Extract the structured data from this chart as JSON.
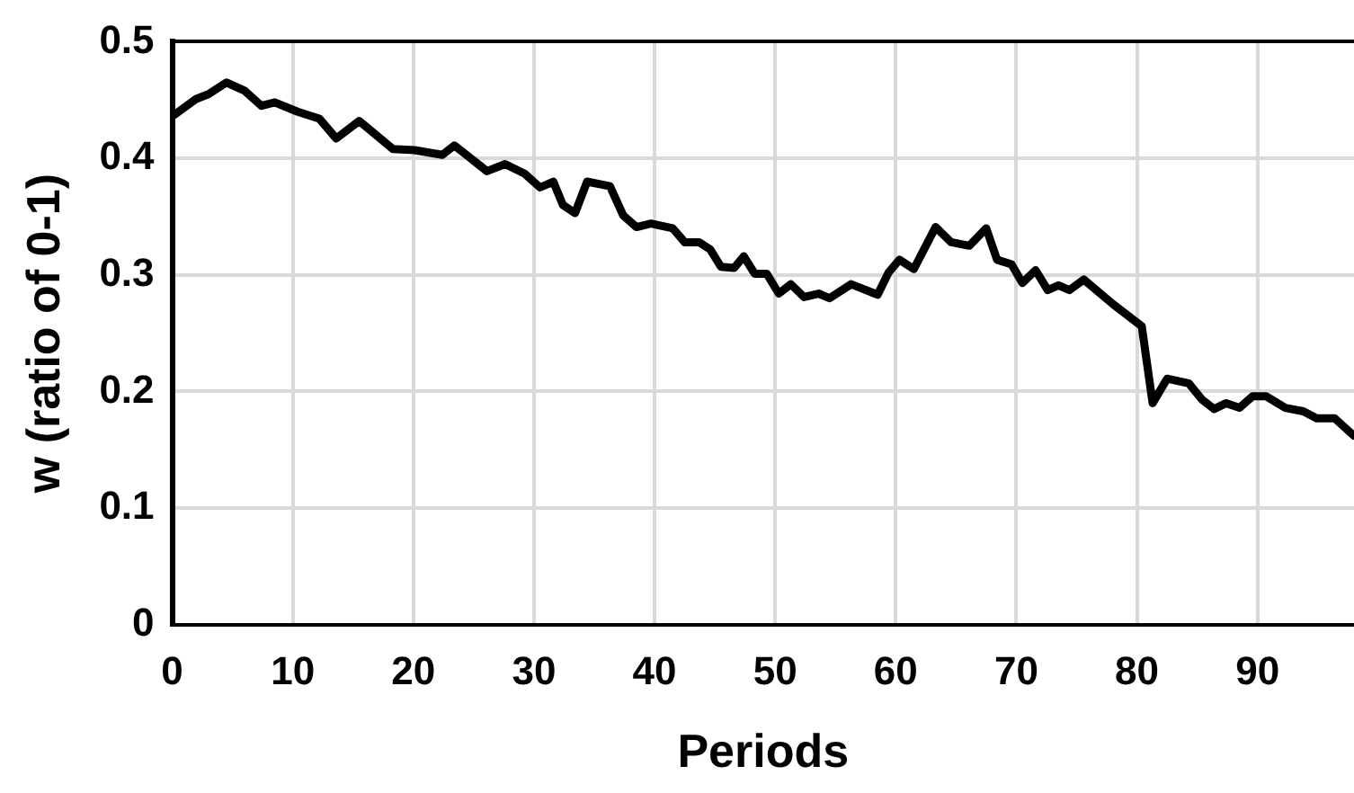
{
  "chart_data": {
    "type": "line",
    "xlabel": "Periods",
    "ylabel": "w (ratio of 0-1)",
    "x": [
      0,
      2,
      3,
      4.5,
      6,
      7.4,
      8.5,
      10.4,
      12.2,
      13.6,
      15.5,
      18.3,
      20.1,
      22.4,
      23.4,
      26.1,
      27.6,
      29.2,
      30.5,
      31.6,
      32.4,
      33.4,
      34.4,
      36.3,
      37.4,
      38.5,
      39.7,
      41.5,
      42.5,
      43.7,
      44.6,
      45.5,
      46.6,
      47.4,
      48.3,
      49.3,
      50.3,
      51.3,
      52.4,
      53.6,
      54.5,
      56.3,
      58.5,
      59.4,
      60.3,
      61.5,
      63.3,
      64.6,
      66.1,
      67.5,
      68.4,
      69.6,
      70.5,
      71.6,
      72.6,
      73.5,
      74.4,
      75.6,
      78,
      80.4,
      81.3,
      82.5,
      84.3,
      85.4,
      86.4,
      87.4,
      88.5,
      89.6,
      90.7,
      92.3,
      93.8,
      94.9,
      96.4,
      98
    ],
    "series": [
      {
        "color": "#000000",
        "values": [
          0.436,
          0.451,
          0.455,
          0.465,
          0.458,
          0.445,
          0.448,
          0.44,
          0.434,
          0.417,
          0.432,
          0.408,
          0.407,
          0.403,
          0.411,
          0.389,
          0.395,
          0.387,
          0.375,
          0.38,
          0.36,
          0.353,
          0.38,
          0.376,
          0.351,
          0.341,
          0.344,
          0.34,
          0.328,
          0.328,
          0.322,
          0.307,
          0.306,
          0.316,
          0.301,
          0.301,
          0.284,
          0.292,
          0.281,
          0.284,
          0.28,
          0.292,
          0.283,
          0.302,
          0.313,
          0.305,
          0.341,
          0.328,
          0.325,
          0.34,
          0.313,
          0.309,
          0.293,
          0.304,
          0.287,
          0.291,
          0.287,
          0.296,
          0.275,
          0.256,
          0.19,
          0.211,
          0.207,
          0.193,
          0.185,
          0.19,
          0.186,
          0.196,
          0.196,
          0.186,
          0.183,
          0.177,
          0.177,
          0.162
        ]
      }
    ],
    "xlim": [
      0,
      98
    ],
    "xticks": [
      0,
      10,
      20,
      30,
      40,
      50,
      60,
      70,
      80,
      90
    ],
    "ylim": [
      0,
      0.5
    ],
    "yticks": [
      0,
      0.1,
      0.2,
      0.3,
      0.4,
      0.5
    ],
    "grid": true,
    "legend": false,
    "marker": "none",
    "line_style": "solid"
  }
}
